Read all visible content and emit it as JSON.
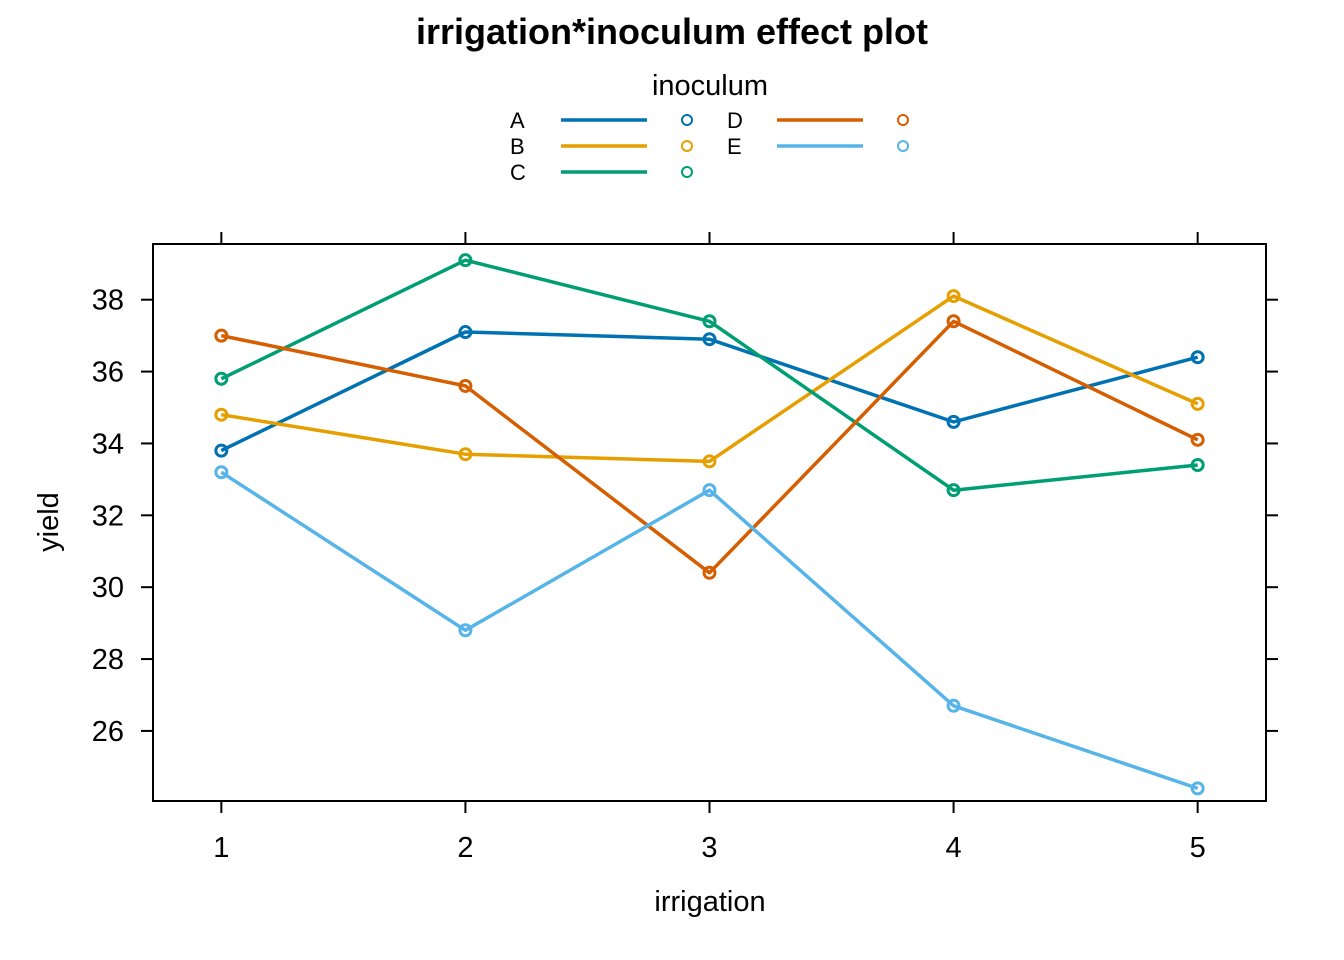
{
  "chart_data": {
    "type": "line",
    "title": "irrigation*inoculum effect plot",
    "xlabel": "irrigation",
    "ylabel": "yield",
    "categories": [
      "1",
      "2",
      "3",
      "4",
      "5"
    ],
    "x": [
      1,
      2,
      3,
      4,
      5
    ],
    "xlim": [
      0.72,
      5.28
    ],
    "ylim": [
      24.05,
      39.55
    ],
    "yticks": [
      26,
      28,
      30,
      32,
      34,
      36,
      38
    ],
    "ytick_labels": [
      "26",
      "28",
      "30",
      "32",
      "34",
      "36",
      "38"
    ],
    "grid": false,
    "legend": {
      "title": "inoculum",
      "placement": "top"
    },
    "series": [
      {
        "name": "A",
        "color": "#0072B2",
        "values": [
          33.8,
          37.1,
          36.9,
          34.6,
          36.4
        ]
      },
      {
        "name": "B",
        "color": "#E69F00",
        "values": [
          34.8,
          33.7,
          33.5,
          38.1,
          35.1
        ]
      },
      {
        "name": "C",
        "color": "#009E73",
        "values": [
          35.8,
          39.1,
          37.4,
          32.7,
          33.4
        ]
      },
      {
        "name": "D",
        "color": "#D55E00",
        "values": [
          37.0,
          35.6,
          30.4,
          37.4,
          34.1
        ]
      },
      {
        "name": "E",
        "color": "#56B4E9",
        "values": [
          33.2,
          28.8,
          32.7,
          26.7,
          24.4
        ]
      }
    ]
  }
}
